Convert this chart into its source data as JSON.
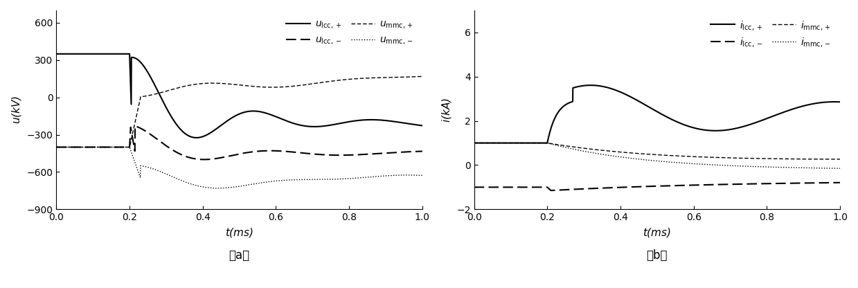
{
  "xlim": [
    0.0,
    1.0
  ],
  "xticks": [
    0.0,
    0.2,
    0.4,
    0.6,
    0.8,
    1.0
  ],
  "subplot_a": {
    "ylim": [
      -900,
      700
    ],
    "yticks": [
      -900,
      -600,
      -300,
      0,
      300,
      600
    ],
    "ylabel": "u(kV)",
    "xlabel": "t(ms)",
    "label_a": "（a）"
  },
  "subplot_b": {
    "ylim": [
      -2,
      7
    ],
    "yticks": [
      -2,
      0,
      2,
      4,
      6
    ],
    "ylabel": "i(kA)",
    "xlabel": "t(ms)",
    "label_b": "（b）"
  }
}
